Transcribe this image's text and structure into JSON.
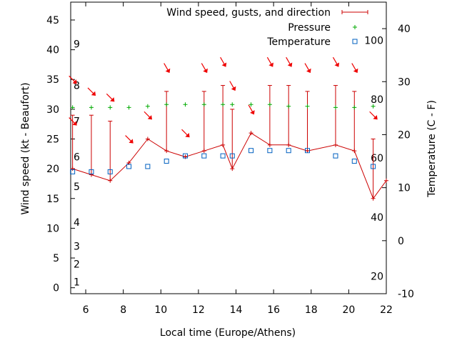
{
  "chart_data": {
    "type": "line",
    "xlabel": "Local time (Europe/Athens)",
    "ylabel": "Wind speed (kt - Beaufort)",
    "y2label": "Temperature (C - F)",
    "xlim": [
      5.2,
      22
    ],
    "ylim": [
      -1,
      48
    ],
    "y2lim": [
      -10,
      45
    ],
    "x_ticks": [
      6,
      8,
      10,
      12,
      14,
      16,
      18,
      20,
      22
    ],
    "y_ticks": [
      0,
      5,
      10,
      15,
      20,
      25,
      30,
      35,
      40,
      45
    ],
    "y2_ticks": [
      -10,
      0,
      10,
      20,
      30,
      40
    ],
    "beaufort_labels": [
      {
        "label": "1",
        "value": 1
      },
      {
        "label": "2",
        "value": 4
      },
      {
        "label": "3",
        "value": 7
      },
      {
        "label": "4",
        "value": 11
      },
      {
        "label": "5",
        "value": 17
      },
      {
        "label": "6",
        "value": 22
      },
      {
        "label": "7",
        "value": 28
      },
      {
        "label": "8",
        "value": 34
      },
      {
        "label": "9",
        "value": 41
      }
    ],
    "fahrenheit_labels": [
      {
        "label": "20",
        "value": -6.7
      },
      {
        "label": "40",
        "value": 4.4
      },
      {
        "label": "60",
        "value": 15.6
      },
      {
        "label": "80",
        "value": 26.7
      },
      {
        "label": "100",
        "value": 37.8
      }
    ],
    "legend_position": "top-right",
    "series": [
      {
        "name": "Wind speed, gusts, and direction",
        "color": "#cc0000",
        "x": [
          5.3,
          6.3,
          7.3,
          8.3,
          9.3,
          10.3,
          11.3,
          12.3,
          13.3,
          13.8,
          14.8,
          15.8,
          16.8,
          17.8,
          19.3,
          20.3,
          21.3,
          22.0
        ],
        "values": [
          20,
          19,
          18,
          21,
          25,
          23,
          22,
          23,
          24,
          20,
          26,
          24,
          24,
          23,
          24,
          23,
          15,
          18
        ],
        "gusts": [
          29,
          29,
          28,
          null,
          null,
          33,
          null,
          33,
          34,
          30,
          null,
          34,
          34,
          33,
          34,
          33,
          25,
          null
        ]
      },
      {
        "name": "Pressure",
        "color": "#00aa00",
        "x": [
          5.3,
          6.3,
          7.3,
          8.3,
          9.3,
          10.3,
          11.3,
          12.3,
          13.3,
          13.8,
          14.8,
          15.8,
          16.8,
          17.8,
          19.3,
          20.3,
          21.3
        ],
        "values": [
          30.3,
          30.3,
          30.3,
          30.3,
          30.5,
          30.8,
          30.8,
          30.8,
          30.8,
          30.8,
          30.8,
          30.8,
          30.5,
          30.5,
          30.3,
          30.3,
          30.5
        ]
      },
      {
        "name": "Temperature",
        "color": "#0060c0",
        "x": [
          5.3,
          6.3,
          7.3,
          8.3,
          9.3,
          10.3,
          11.3,
          12.3,
          13.3,
          13.8,
          14.8,
          15.8,
          16.8,
          17.8,
          19.3,
          20.3,
          21.3
        ],
        "values": [
          13,
          13,
          13,
          14,
          14,
          15,
          16,
          16,
          16,
          16,
          17,
          17,
          17,
          17,
          16,
          15,
          14
        ]
      }
    ],
    "direction_arrows": [
      {
        "x": 5.3,
        "wind": 35,
        "dir_deg": 315
      },
      {
        "x": 5.3,
        "wind": 28,
        "dir_deg": 315
      },
      {
        "x": 6.3,
        "wind": 33,
        "dir_deg": 315
      },
      {
        "x": 7.3,
        "wind": 32,
        "dir_deg": 315
      },
      {
        "x": 8.3,
        "wind": 25,
        "dir_deg": 315
      },
      {
        "x": 9.3,
        "wind": 29,
        "dir_deg": 315
      },
      {
        "x": 10.3,
        "wind": 37,
        "dir_deg": 330
      },
      {
        "x": 11.3,
        "wind": 26,
        "dir_deg": 315
      },
      {
        "x": 12.3,
        "wind": 37,
        "dir_deg": 330
      },
      {
        "x": 13.3,
        "wind": 38,
        "dir_deg": 330
      },
      {
        "x": 13.8,
        "wind": 34,
        "dir_deg": 330
      },
      {
        "x": 14.8,
        "wind": 30,
        "dir_deg": 330
      },
      {
        "x": 15.8,
        "wind": 38,
        "dir_deg": 330
      },
      {
        "x": 16.8,
        "wind": 38,
        "dir_deg": 330
      },
      {
        "x": 17.8,
        "wind": 37,
        "dir_deg": 330
      },
      {
        "x": 19.3,
        "wind": 38,
        "dir_deg": 330
      },
      {
        "x": 20.3,
        "wind": 37,
        "dir_deg": 330
      },
      {
        "x": 21.3,
        "wind": 29,
        "dir_deg": 315
      }
    ]
  }
}
